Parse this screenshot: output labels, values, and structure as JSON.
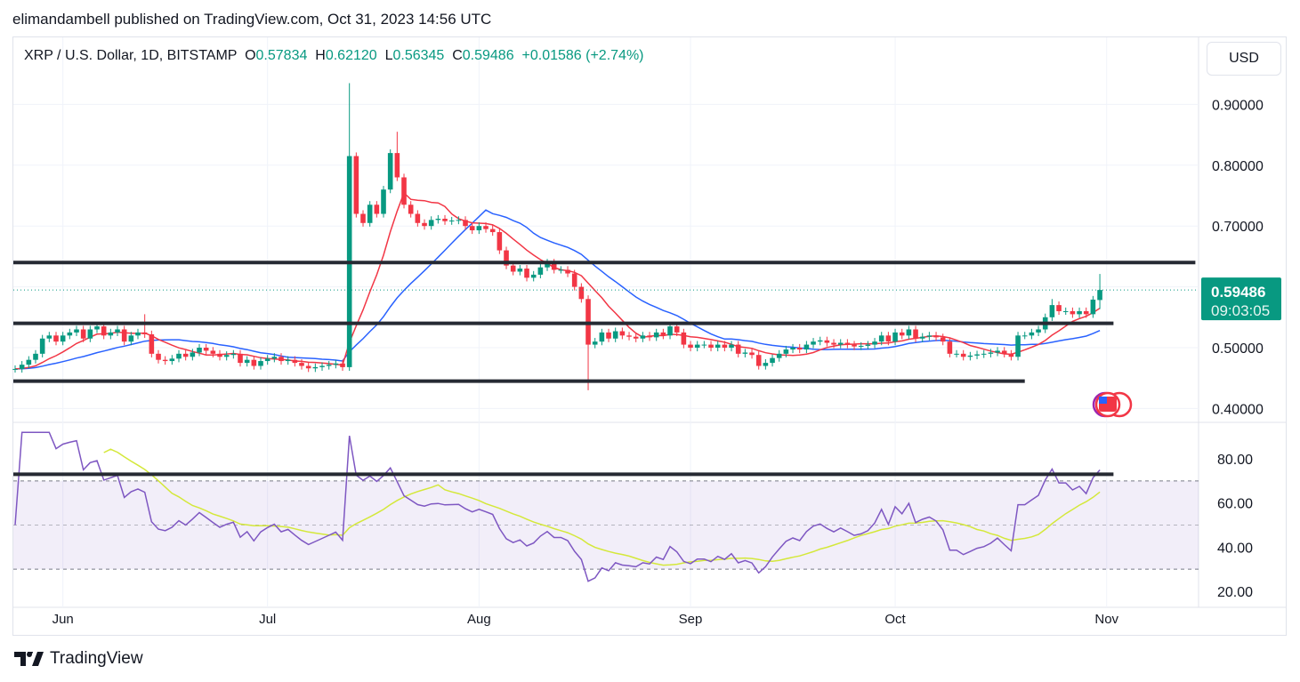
{
  "publisher_line": "elimandambell published on TradingView.com, Oct 31, 2023 14:56 UTC",
  "legend": {
    "symbol": "XRP / U.S. Dollar, 1D, BITSTAMP",
    "o_label": "O",
    "o": "0.57834",
    "h_label": "H",
    "h": "0.62120",
    "l_label": "L",
    "l": "0.56345",
    "c_label": "C",
    "c": "0.59486",
    "change": "+0.01586 (+2.74%)"
  },
  "currency_button": "USD",
  "last_price": {
    "price": "0.59486",
    "countdown": "09:03:05"
  },
  "brand": "TradingView",
  "colors": {
    "up": "#089981",
    "down": "#f23645",
    "ma_fast": "#f23645",
    "ma_slow": "#2962ff",
    "rsi": "#7e57c2",
    "rsi_ma": "#d4e83a",
    "level_lines": "#262a33"
  },
  "chart_data": {
    "type": "candlestick",
    "title": "XRP / U.S. Dollar, 1D, BITSTAMP",
    "start_date": "May 25, 2023",
    "first_open": 0.465,
    "closes": [
      0.465,
      0.472,
      0.48,
      0.49,
      0.515,
      0.52,
      0.51,
      0.52,
      0.525,
      0.53,
      0.515,
      0.53,
      0.535,
      0.52,
      0.525,
      0.53,
      0.51,
      0.52,
      0.525,
      0.522,
      0.49,
      0.48,
      0.478,
      0.482,
      0.49,
      0.485,
      0.492,
      0.5,
      0.495,
      0.49,
      0.485,
      0.488,
      0.49,
      0.475,
      0.48,
      0.47,
      0.478,
      0.482,
      0.485,
      0.478,
      0.48,
      0.475,
      0.47,
      0.466,
      0.468,
      0.47,
      0.472,
      0.474,
      0.468,
      0.815,
      0.72,
      0.705,
      0.735,
      0.72,
      0.76,
      0.82,
      0.78,
      0.735,
      0.72,
      0.705,
      0.7,
      0.71,
      0.712,
      0.708,
      0.709,
      0.71,
      0.7,
      0.693,
      0.7,
      0.695,
      0.69,
      0.66,
      0.635,
      0.625,
      0.63,
      0.615,
      0.62,
      0.632,
      0.64,
      0.628,
      0.628,
      0.622,
      0.6,
      0.58,
      0.505,
      0.51,
      0.525,
      0.515,
      0.527,
      0.52,
      0.518,
      0.515,
      0.52,
      0.517,
      0.525,
      0.52,
      0.535,
      0.525,
      0.505,
      0.5,
      0.505,
      0.505,
      0.5,
      0.505,
      0.5,
      0.505,
      0.49,
      0.492,
      0.488,
      0.47,
      0.475,
      0.483,
      0.49,
      0.497,
      0.5,
      0.497,
      0.505,
      0.51,
      0.512,
      0.508,
      0.505,
      0.508,
      0.505,
      0.502,
      0.503,
      0.505,
      0.51,
      0.52,
      0.51,
      0.525,
      0.52,
      0.53,
      0.515,
      0.518,
      0.52,
      0.517,
      0.51,
      0.49,
      0.49,
      0.485,
      0.487,
      0.489,
      0.49,
      0.492,
      0.495,
      0.49,
      0.485,
      0.52,
      0.52,
      0.525,
      0.53,
      0.55,
      0.57,
      0.56,
      0.56,
      0.555,
      0.56,
      0.555,
      0.579,
      0.59486
    ],
    "overrides": [
      {
        "i": 19,
        "h": 0.555
      },
      {
        "i": 49,
        "h": 0.935,
        "l": 0.462
      },
      {
        "i": 56,
        "h": 0.855
      },
      {
        "i": 84,
        "l": 0.43
      },
      {
        "i": 152,
        "h": 0.58
      },
      {
        "i": 159,
        "o": 0.57834,
        "h": 0.6212,
        "l": 0.56345
      }
    ],
    "ma_fast_period": 9,
    "ma_slow_period": 21,
    "price_axis": {
      "ticks": [
        "0.90000",
        "0.80000",
        "0.70000",
        "0.50000",
        "0.40000"
      ],
      "range": [
        0.37,
        0.98
      ]
    },
    "x_ticks": [
      {
        "label": "Jun",
        "day": 7
      },
      {
        "label": "Jul",
        "day": 37
      },
      {
        "label": "Aug",
        "day": 68
      },
      {
        "label": "Sep",
        "day": 99
      },
      {
        "label": "Oct",
        "day": 129
      },
      {
        "label": "Nov",
        "day": 160
      }
    ],
    "horizontal_lines": [
      {
        "price": 0.64,
        "end_day": 173
      },
      {
        "price": 0.54,
        "end_day": 161
      },
      {
        "price": 0.445,
        "end_day": 148
      }
    ],
    "rsi": {
      "period": 14,
      "ma_period": 14,
      "ticks": [
        "80.00",
        "60.00",
        "40.00",
        "20.00"
      ],
      "upper": 70,
      "middle": 50,
      "lower": 30,
      "drawn_line": {
        "value": 73,
        "end_day": 161
      }
    }
  }
}
